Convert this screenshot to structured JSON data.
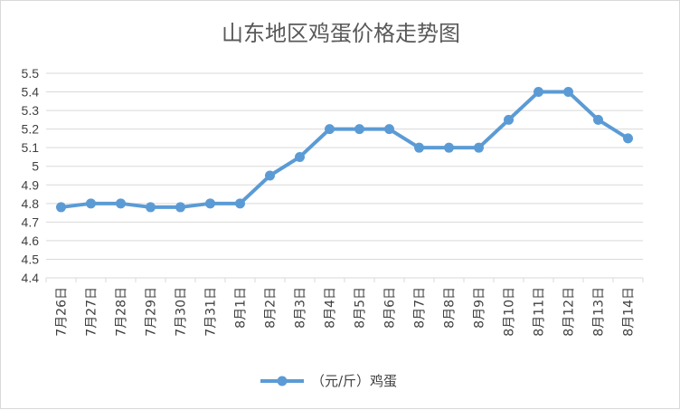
{
  "chart_data": {
    "type": "line",
    "title": "山东地区鸡蛋价格走势图",
    "categories": [
      "7月26日",
      "7月27日",
      "7月28日",
      "7月29日",
      "7月30日",
      "7月31日",
      "8月1日",
      "8月2日",
      "8月3日",
      "8月4日",
      "8月5日",
      "8月6日",
      "8月7日",
      "8月8日",
      "8月9日",
      "8月10日",
      "8月11日",
      "8月12日",
      "8月13日",
      "8月14日"
    ],
    "series": [
      {
        "name": "（元/斤）鸡蛋",
        "color": "#5b9bd5",
        "values": [
          4.78,
          4.8,
          4.8,
          4.78,
          4.78,
          4.8,
          4.8,
          4.95,
          5.05,
          5.2,
          5.2,
          5.2,
          5.1,
          5.1,
          5.1,
          5.25,
          5.4,
          5.4,
          5.25,
          5.15
        ]
      }
    ],
    "yticks": [
      "4.4",
      "4.5",
      "4.6",
      "4.7",
      "4.8",
      "4.9",
      "5",
      "5.1",
      "5.2",
      "5.3",
      "5.4",
      "5.5"
    ],
    "ylim": [
      4.4,
      5.5
    ],
    "grid": true,
    "legend_position": "bottom",
    "xlabel": "",
    "ylabel": ""
  }
}
